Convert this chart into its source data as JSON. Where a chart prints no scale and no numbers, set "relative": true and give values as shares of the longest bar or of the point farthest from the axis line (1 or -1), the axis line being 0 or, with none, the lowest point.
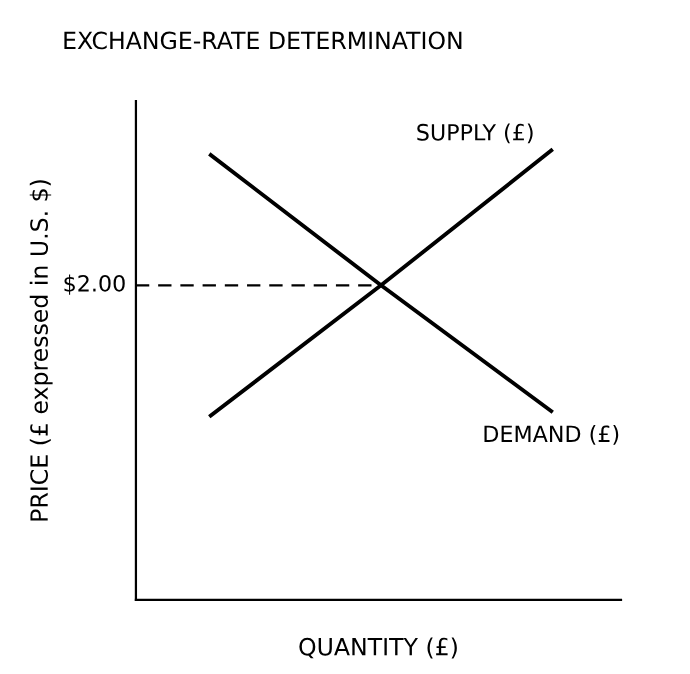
{
  "chart_data": {
    "type": "line",
    "title": "EXCHANGE-RATE DETERMINATION",
    "xlabel": "QUANTITY (£)",
    "ylabel": "PRICE (£ expressed in U.S. $)",
    "relative": true,
    "categories": [
      null,
      null,
      null
    ],
    "series": [
      {
        "name": "SUPPLY (£)",
        "color": "#000000",
        "values": [
          0.41,
          0.7,
          1.0
        ]
      },
      {
        "name": "DEMAND (£)",
        "color": "#000000",
        "values": [
          0.99,
          0.7,
          0.42
        ]
      }
    ],
    "ref_lines": [
      {
        "axis": "y",
        "value": 0.7,
        "color": "#000000",
        "line_style": "dashed"
      }
    ],
    "annotations": [
      "$2.00"
    ],
    "marker": "none",
    "line_style": "solid",
    "grid": false,
    "legend": false
  }
}
